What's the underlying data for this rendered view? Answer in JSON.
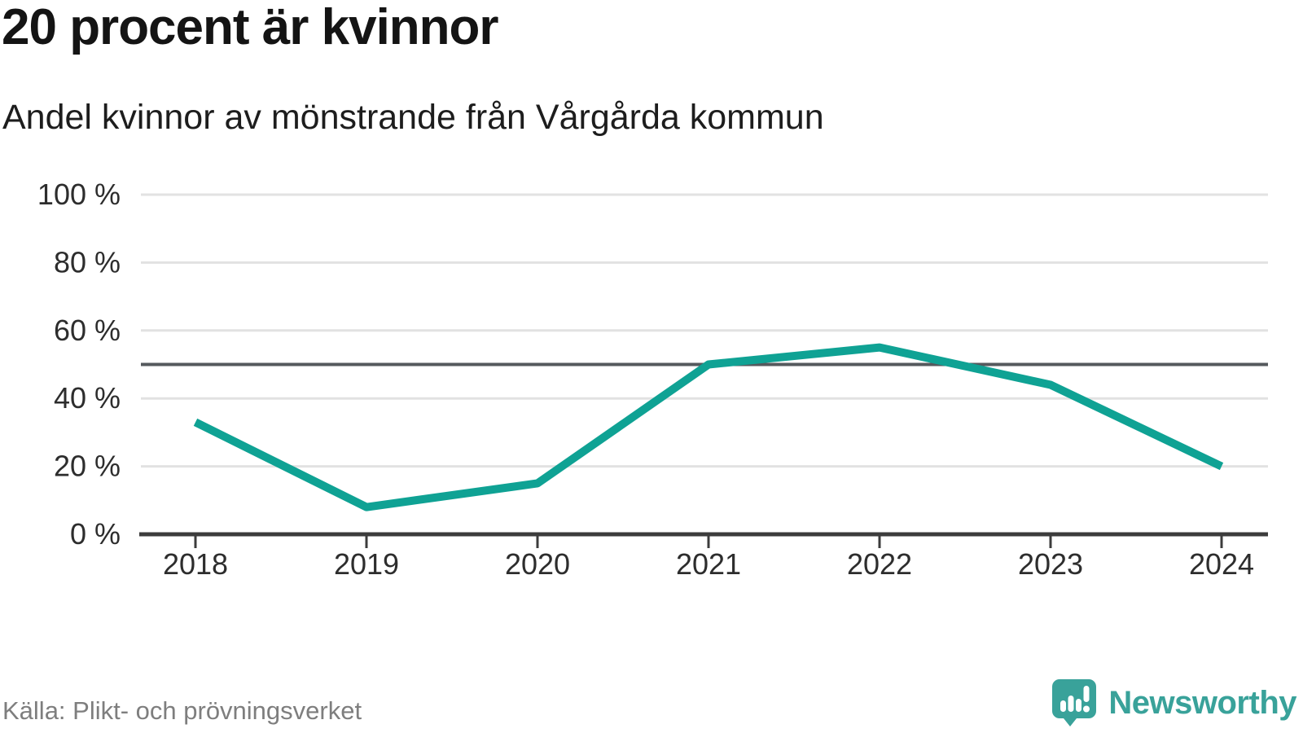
{
  "header": {
    "title": "20 procent är kvinnor",
    "subtitle": "Andel kvinnor av mönstrande från Vårgårda kommun"
  },
  "footer": {
    "source": "Källa: Plikt- och prövningsverket",
    "logo_text": "Newsworthy",
    "logo_icon": "newsworthy-speech-bubble-bar-chart-icon"
  },
  "colors": {
    "line": "#0fa294",
    "reference_line": "#55595d",
    "gridline": "#e2e2e2",
    "axis": "#3c3c3c",
    "tick_label": "#2d2d2d",
    "title_text": "#141414",
    "source_text": "#7e7e7e",
    "brand_teal": "#39a29a"
  },
  "chart_data": {
    "type": "line",
    "title": "20 procent är kvinnor",
    "subtitle": "Andel kvinnor av mönstrande från Vårgårda kommun",
    "x": [
      "2018",
      "2019",
      "2020",
      "2021",
      "2022",
      "2023",
      "2024"
    ],
    "series": [
      {
        "name": "Andel kvinnor av mönstrande",
        "values": [
          33,
          8,
          15,
          50,
          55,
          44,
          20
        ]
      }
    ],
    "unit": "%",
    "ylim": [
      0,
      100
    ],
    "y_ticks": [
      0,
      20,
      40,
      60,
      80,
      100
    ],
    "y_tick_labels": [
      "0 %",
      "20 %",
      "40 %",
      "60 %",
      "80 %",
      "100 %"
    ],
    "reference_line_y": 50,
    "grid": "horizontal",
    "legend_position": "none",
    "source": "Källa: Plikt- och prövningsverket"
  }
}
